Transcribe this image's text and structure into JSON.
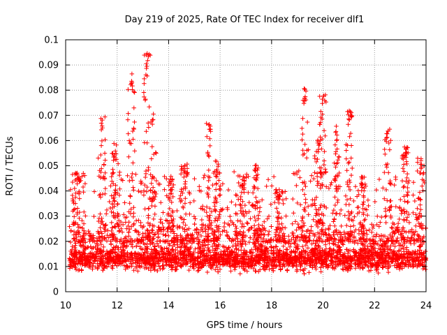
{
  "chart_data": {
    "type": "scatter",
    "title": "Day 219 of 2025, Rate Of TEC Index for receiver dlf1",
    "xlabel": "GPS time / hours",
    "ylabel": "ROTI / TECUs",
    "xlim": [
      10,
      24
    ],
    "ylim": [
      0,
      0.1
    ],
    "xticks": [
      10,
      12,
      14,
      16,
      18,
      20,
      22,
      24
    ],
    "xtick_labels": [
      "10",
      "12",
      "14",
      "16",
      "18",
      "20",
      "22",
      "24"
    ],
    "yticks": [
      0,
      0.01,
      0.02,
      0.03,
      0.04,
      0.05,
      0.06,
      0.07,
      0.08,
      0.09,
      0.1
    ],
    "ytick_labels": [
      "0",
      "0.01",
      "0.02",
      "0.03",
      "0.04",
      "0.05",
      "0.06",
      "0.07",
      "0.08",
      "0.09",
      "0.1"
    ],
    "grid": true,
    "marker": "+",
    "color": "#ff0000",
    "series": [
      {
        "name": "ROTI",
        "baseline": {
          "x_start": 10.15,
          "x_end": 24,
          "typical_min": 0.005,
          "typical_max": 0.025,
          "center": 0.013
        },
        "peaks": [
          {
            "x": 10.4,
            "y": 0.049
          },
          {
            "x": 11.4,
            "y": 0.07
          },
          {
            "x": 11.9,
            "y": 0.059
          },
          {
            "x": 12.55,
            "y": 0.087
          },
          {
            "x": 13.15,
            "y": 0.095
          },
          {
            "x": 13.4,
            "y": 0.072
          },
          {
            "x": 14.1,
            "y": 0.046
          },
          {
            "x": 14.6,
            "y": 0.052
          },
          {
            "x": 15.6,
            "y": 0.068
          },
          {
            "x": 15.9,
            "y": 0.052
          },
          {
            "x": 16.9,
            "y": 0.047
          },
          {
            "x": 17.4,
            "y": 0.051
          },
          {
            "x": 18.3,
            "y": 0.041
          },
          {
            "x": 19.3,
            "y": 0.081
          },
          {
            "x": 19.8,
            "y": 0.061
          },
          {
            "x": 20.0,
            "y": 0.08
          },
          {
            "x": 20.5,
            "y": 0.066
          },
          {
            "x": 21.0,
            "y": 0.072
          },
          {
            "x": 21.5,
            "y": 0.047
          },
          {
            "x": 22.5,
            "y": 0.065
          },
          {
            "x": 23.2,
            "y": 0.058
          },
          {
            "x": 23.8,
            "y": 0.053
          }
        ]
      }
    ]
  }
}
